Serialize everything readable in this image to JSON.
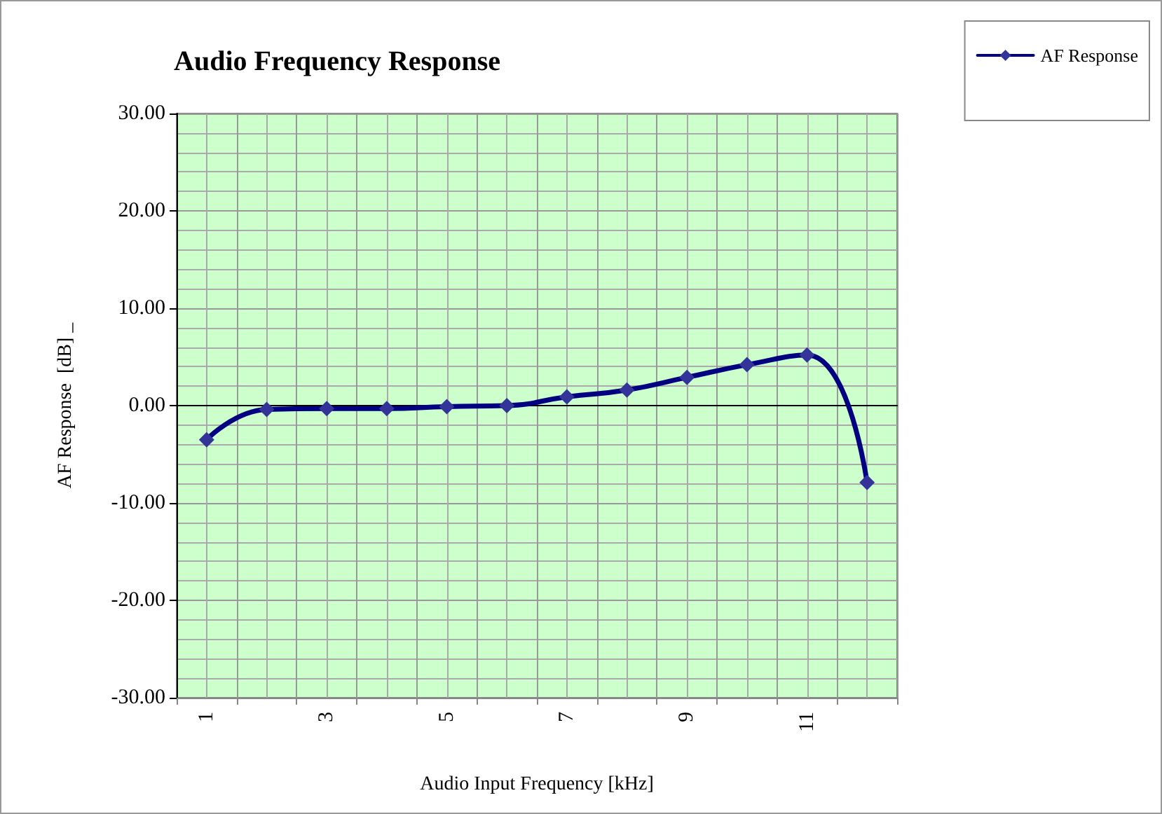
{
  "chart_data": {
    "type": "line",
    "title": "Audio Frequency Response",
    "xlabel": "Audio Input Frequency [kHz]",
    "ylabel": "AF Response  [dB] _",
    "categories": [
      "1",
      null,
      "3",
      null,
      "5",
      null,
      "7",
      null,
      "9",
      null,
      "11",
      null
    ],
    "series": [
      {
        "name": "AF Response",
        "color": "#000080",
        "values": [
          -3.5,
          -0.4,
          -0.3,
          -0.3,
          -0.1,
          0.0,
          0.9,
          1.6,
          2.9,
          4.2,
          5.2,
          -7.9
        ]
      }
    ],
    "ylim": [
      -30,
      30
    ],
    "yticks": [
      {
        "value": -30,
        "label": "-30.00"
      },
      {
        "value": -20,
        "label": "-20.00"
      },
      {
        "value": -10,
        "label": "-10.00"
      },
      {
        "value": 0,
        "label": "0.00"
      },
      {
        "value": 10,
        "label": "10.00"
      },
      {
        "value": 20,
        "label": "20.00"
      },
      {
        "value": 30,
        "label": "30.00"
      }
    ],
    "grid": true,
    "legend": "top right",
    "marker": "diamond",
    "line_style": "solid"
  }
}
